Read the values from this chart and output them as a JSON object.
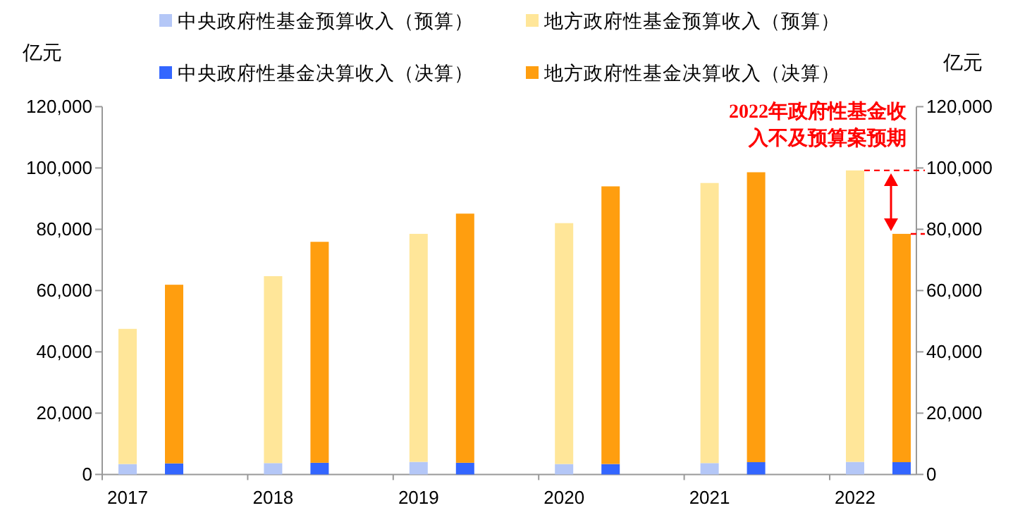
{
  "chart_data": {
    "type": "bar",
    "stacked": true,
    "categories": [
      "2017",
      null,
      "2018",
      null,
      "2019",
      null,
      "2020",
      null,
      "2021",
      null,
      "2022",
      null
    ],
    "series": [
      {
        "name": "中央政府性基金预算收入（预算）",
        "color": "#b4c7f7",
        "values": [
          3400,
          null,
          3700,
          null,
          4100,
          null,
          3400,
          null,
          3700,
          null,
          4100,
          null
        ]
      },
      {
        "name": "地方政府性基金预算收入（预算）",
        "color": "#ffe699",
        "values": [
          44100,
          null,
          61000,
          null,
          74400,
          null,
          78600,
          null,
          91400,
          null,
          95100,
          null
        ]
      },
      {
        "name": "中央政府性基金决算收入（决算）",
        "color": "#3366ff",
        "values": [
          null,
          3600,
          null,
          3800,
          null,
          3800,
          null,
          3400,
          null,
          4000,
          null,
          4000
        ]
      },
      {
        "name": "地方政府性基金决算收入（决算）",
        "color": "#ff9e0f",
        "values": [
          null,
          58300,
          null,
          72100,
          null,
          81300,
          null,
          90600,
          null,
          94600,
          null,
          74500
        ]
      }
    ],
    "ylabel": "亿元",
    "y2label": "亿元",
    "ylim": [
      0,
      120000
    ],
    "yticks": [
      {
        "value": 0,
        "label": "0"
      },
      {
        "value": 20000,
        "label": "20,000"
      },
      {
        "value": 40000,
        "label": "40,000"
      },
      {
        "value": 60000,
        "label": "60,000"
      },
      {
        "value": 80000,
        "label": "80,000"
      },
      {
        "value": 100000,
        "label": "100,000"
      },
      {
        "value": 120000,
        "label": "120,000"
      }
    ],
    "y2lim": [
      0,
      120000
    ],
    "y2ticks": [
      {
        "value": 0,
        "label": "0"
      },
      {
        "value": 20000,
        "label": "20,000"
      },
      {
        "value": 40000,
        "label": "40,000"
      },
      {
        "value": 60000,
        "label": "60,000"
      },
      {
        "value": 80000,
        "label": "80,000"
      },
      {
        "value": 100000,
        "label": "100,000"
      },
      {
        "value": 120000,
        "label": "120,000"
      }
    ],
    "annotations": [
      "2022年政府性基金收入不及预算案预期"
    ],
    "legend": "top",
    "grid": false
  }
}
